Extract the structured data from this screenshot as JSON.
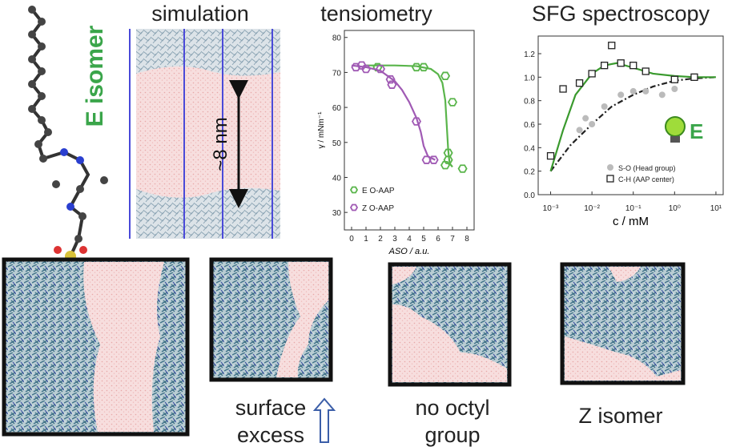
{
  "labels": {
    "isomer": "E isomer",
    "simulation": "simulation",
    "scale": "~8 nm"
  },
  "panels": [
    {
      "lines": [
        "surface",
        "excess"
      ]
    },
    {
      "lines": [
        "no octyl",
        "group"
      ]
    },
    {
      "lines": [
        "Z isomer"
      ]
    }
  ],
  "chart_data": [
    {
      "type": "scatter",
      "title": "tensiometry",
      "x_label": "ASO / a.u.",
      "y_label": "γ / mNm⁻¹",
      "xlim": [
        -0.5,
        8.5
      ],
      "xticks": [
        0,
        1,
        2,
        3,
        4,
        5,
        6,
        7,
        8
      ],
      "ylim": [
        25,
        82
      ],
      "yticks": [
        30,
        40,
        50,
        60,
        70,
        80
      ],
      "log_x": false,
      "legend": "lower left",
      "series": [
        {
          "name": "E O-AAP",
          "color": "#5ab54b",
          "marker": "hexagon",
          "x": [
            1.8,
            4.5,
            5.0,
            6.5,
            7.0,
            6.7,
            6.7,
            6.5,
            7.7
          ],
          "values": [
            71.5,
            71.5,
            71.5,
            69,
            61.5,
            47,
            45,
            43.5,
            42.5
          ],
          "fit": {
            "x": [
              1,
              3,
              4.5,
              5.5,
              6,
              6.3,
              6.5,
              6.6,
              6.7,
              6.8,
              7
            ],
            "values": [
              72,
              72,
              71.8,
              71,
              69.5,
              67,
              62,
              55,
              48,
              44,
              43
            ]
          }
        },
        {
          "name": "Z O-AAP",
          "color": "#a05ab4",
          "marker": "hexagon",
          "x": [
            0.3,
            0.7,
            1.0,
            2.0,
            2.7,
            2.8,
            4.5,
            5.2,
            5.7
          ],
          "values": [
            71.5,
            72,
            71,
            71,
            68,
            66.5,
            56,
            45,
            45
          ],
          "fit": {
            "x": [
              0,
              1,
              2,
              3,
              3.5,
              4,
              4.5,
              4.8,
              5,
              5.3,
              5.8
            ],
            "values": [
              72,
              71.5,
              70.5,
              67.5,
              65,
              61.5,
              57,
              53,
              49,
              46,
              45
            ]
          }
        }
      ]
    },
    {
      "type": "scatter",
      "title": "SFG spectroscopy",
      "x_label": "c / mM",
      "annotation": "E",
      "xlim": [
        0.0005,
        15
      ],
      "log_x": true,
      "legend": "lower right",
      "xticks": [
        {
          "value": 0.001,
          "label": "10⁻³"
        },
        {
          "value": 0.01,
          "label": "10⁻²"
        },
        {
          "value": 0.1,
          "label": "10⁻¹"
        },
        {
          "value": 1,
          "label": "10⁰"
        },
        {
          "value": 10,
          "label": "10¹"
        }
      ],
      "ylim": [
        0,
        1.35
      ],
      "yticks": [
        {
          "value": 0,
          "label": "0.0"
        },
        {
          "value": 0.2,
          "label": "0.2"
        },
        {
          "value": 0.4,
          "label": "0.4"
        },
        {
          "value": 0.6,
          "label": "0.6"
        },
        {
          "value": 0.8,
          "label": "0.8"
        },
        {
          "value": 1,
          "label": "1.0"
        },
        {
          "value": 1.2,
          "label": "1.2"
        }
      ],
      "series": [
        {
          "name": "S-O (Head group)",
          "color": "#bbbbbb",
          "marker": "dot",
          "x": [
            0.005,
            0.007,
            0.01,
            0.02,
            0.05,
            0.1,
            0.2,
            0.5,
            1
          ],
          "values": [
            0.55,
            0.65,
            0.6,
            0.75,
            0.85,
            0.88,
            0.88,
            0.85,
            0.9
          ],
          "fit": {
            "x": [
              0.001,
              0.003,
              0.01,
              0.03,
              0.1,
              0.3,
              1,
              3,
              10
            ],
            "values": [
              0.2,
              0.42,
              0.6,
              0.75,
              0.85,
              0.92,
              0.97,
              0.99,
              1.0
            ]
          }
        },
        {
          "name": "C-H (AAP center)",
          "color": "#222222",
          "marker": "square",
          "x": [
            0.001,
            0.002,
            0.005,
            0.01,
            0.02,
            0.03,
            0.05,
            0.1,
            0.2,
            1,
            3
          ],
          "values": [
            0.33,
            0.9,
            0.95,
            1.03,
            1.1,
            1.27,
            1.12,
            1.1,
            1.05,
            0.98,
            1.0
          ],
          "fit": {
            "x": [
              0.001,
              0.002,
              0.004,
              0.01,
              0.02,
              0.04,
              0.1,
              0.3,
              1,
              3,
              10
            ],
            "values": [
              0.2,
              0.55,
              0.85,
              1.03,
              1.1,
              1.12,
              1.08,
              1.03,
              1.01,
              1.0,
              1.0
            ],
            "color": "#3a9a2e"
          }
        }
      ]
    }
  ]
}
